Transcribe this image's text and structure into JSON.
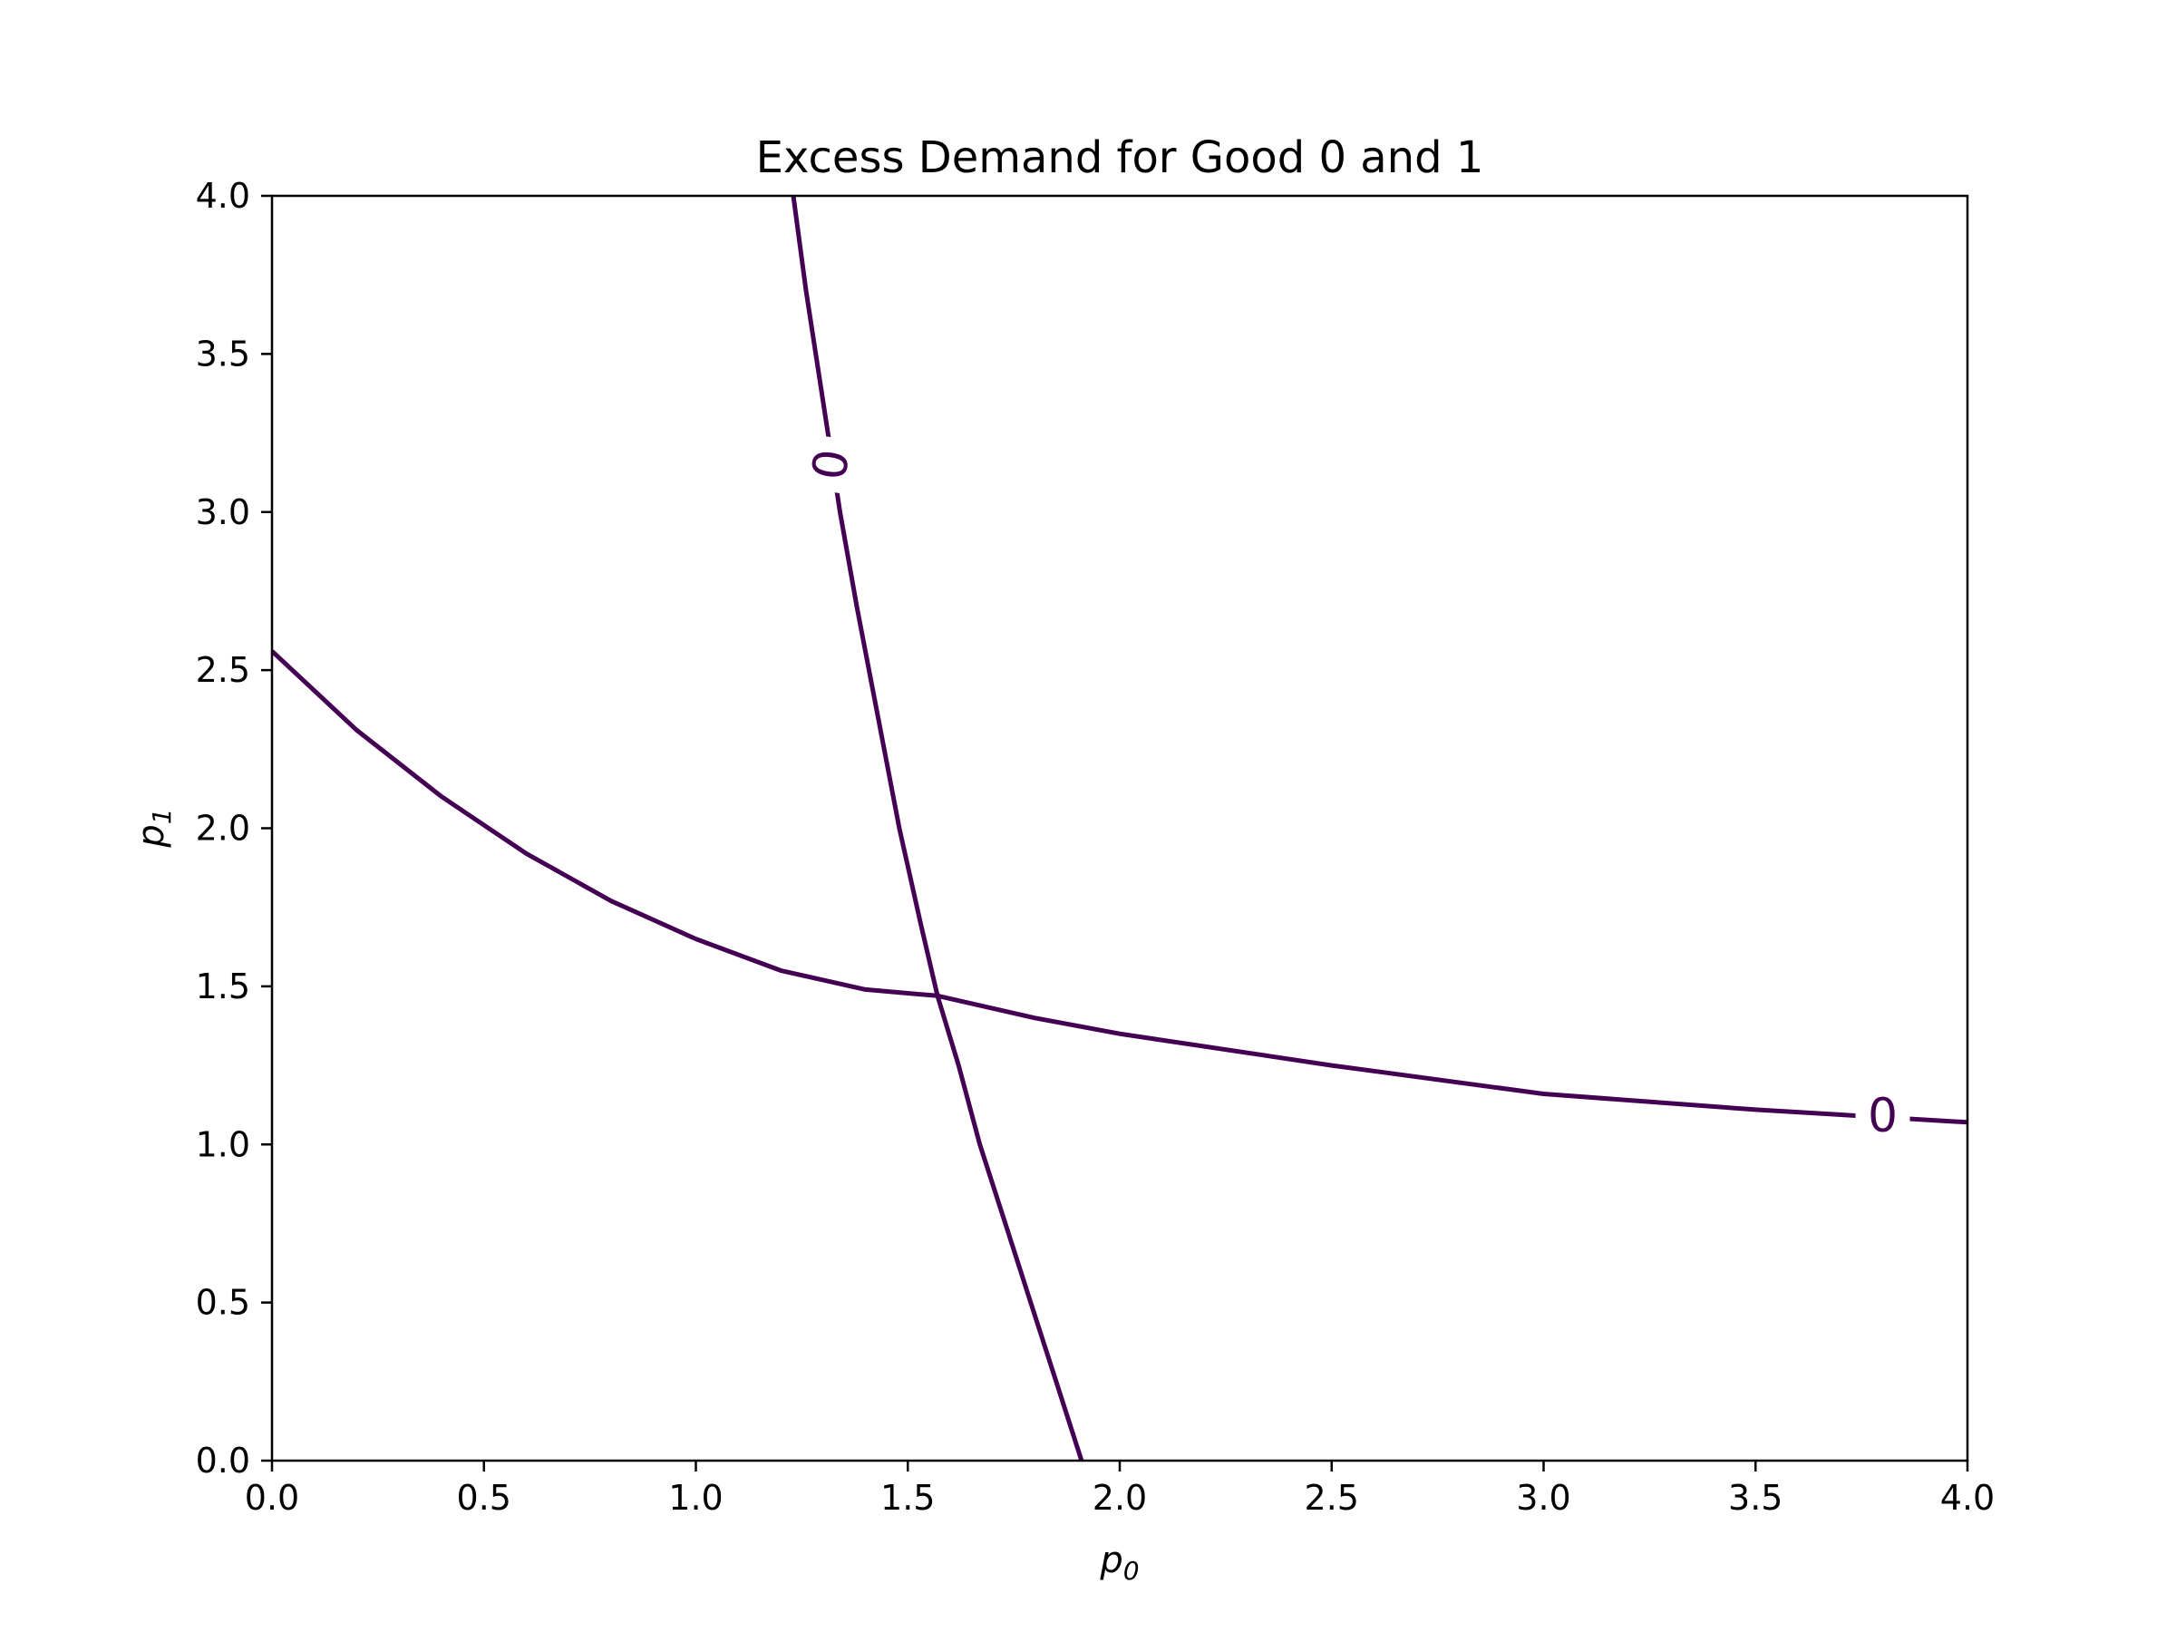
{
  "chart_data": {
    "type": "contour",
    "title": "Excess Demand for Good 0 and 1",
    "xlabel": {
      "base": "p",
      "sub": "0"
    },
    "ylabel": {
      "base": "p",
      "sub": "1"
    },
    "xlim": [
      0,
      4
    ],
    "ylim": [
      0,
      4
    ],
    "xticks": [
      0,
      0.5,
      1,
      1.5,
      2,
      2.5,
      3,
      3.5,
      4
    ],
    "yticks": [
      0,
      0.5,
      1,
      1.5,
      2,
      2.5,
      3,
      3.5,
      4
    ],
    "xtick_labels": [
      "0.0",
      "0.5",
      "1.0",
      "1.5",
      "2.0",
      "2.5",
      "3.0",
      "3.5",
      "4.0"
    ],
    "ytick_labels": [
      "0.0",
      "0.5",
      "1.0",
      "1.5",
      "2.0",
      "2.5",
      "3.0",
      "3.5",
      "4.0"
    ],
    "grid": false,
    "line_color": "#440154",
    "contours": [
      {
        "level_label": "0",
        "label_at": [
          1.32,
          3.15
        ],
        "label_angle": -82,
        "points": [
          [
            1.23,
            4.0
          ],
          [
            1.26,
            3.7
          ],
          [
            1.3,
            3.35
          ],
          [
            1.34,
            3.0
          ],
          [
            1.38,
            2.7
          ],
          [
            1.43,
            2.35
          ],
          [
            1.48,
            2.0
          ],
          [
            1.53,
            1.7
          ],
          [
            1.57,
            1.47
          ],
          [
            1.62,
            1.25
          ],
          [
            1.67,
            1.0
          ],
          [
            1.73,
            0.75
          ],
          [
            1.79,
            0.5
          ],
          [
            1.85,
            0.25
          ],
          [
            1.91,
            0.0
          ]
        ]
      },
      {
        "level_label": "0",
        "label_at": [
          3.8,
          1.09
        ],
        "label_angle": 0,
        "points": [
          [
            0.0,
            2.56
          ],
          [
            0.2,
            2.31
          ],
          [
            0.4,
            2.1
          ],
          [
            0.6,
            1.92
          ],
          [
            0.8,
            1.77
          ],
          [
            1.0,
            1.65
          ],
          [
            1.2,
            1.55
          ],
          [
            1.4,
            1.49
          ],
          [
            1.57,
            1.47
          ],
          [
            1.8,
            1.4
          ],
          [
            2.0,
            1.35
          ],
          [
            2.5,
            1.25
          ],
          [
            3.0,
            1.16
          ],
          [
            3.5,
            1.11
          ],
          [
            4.0,
            1.07
          ]
        ]
      }
    ]
  }
}
